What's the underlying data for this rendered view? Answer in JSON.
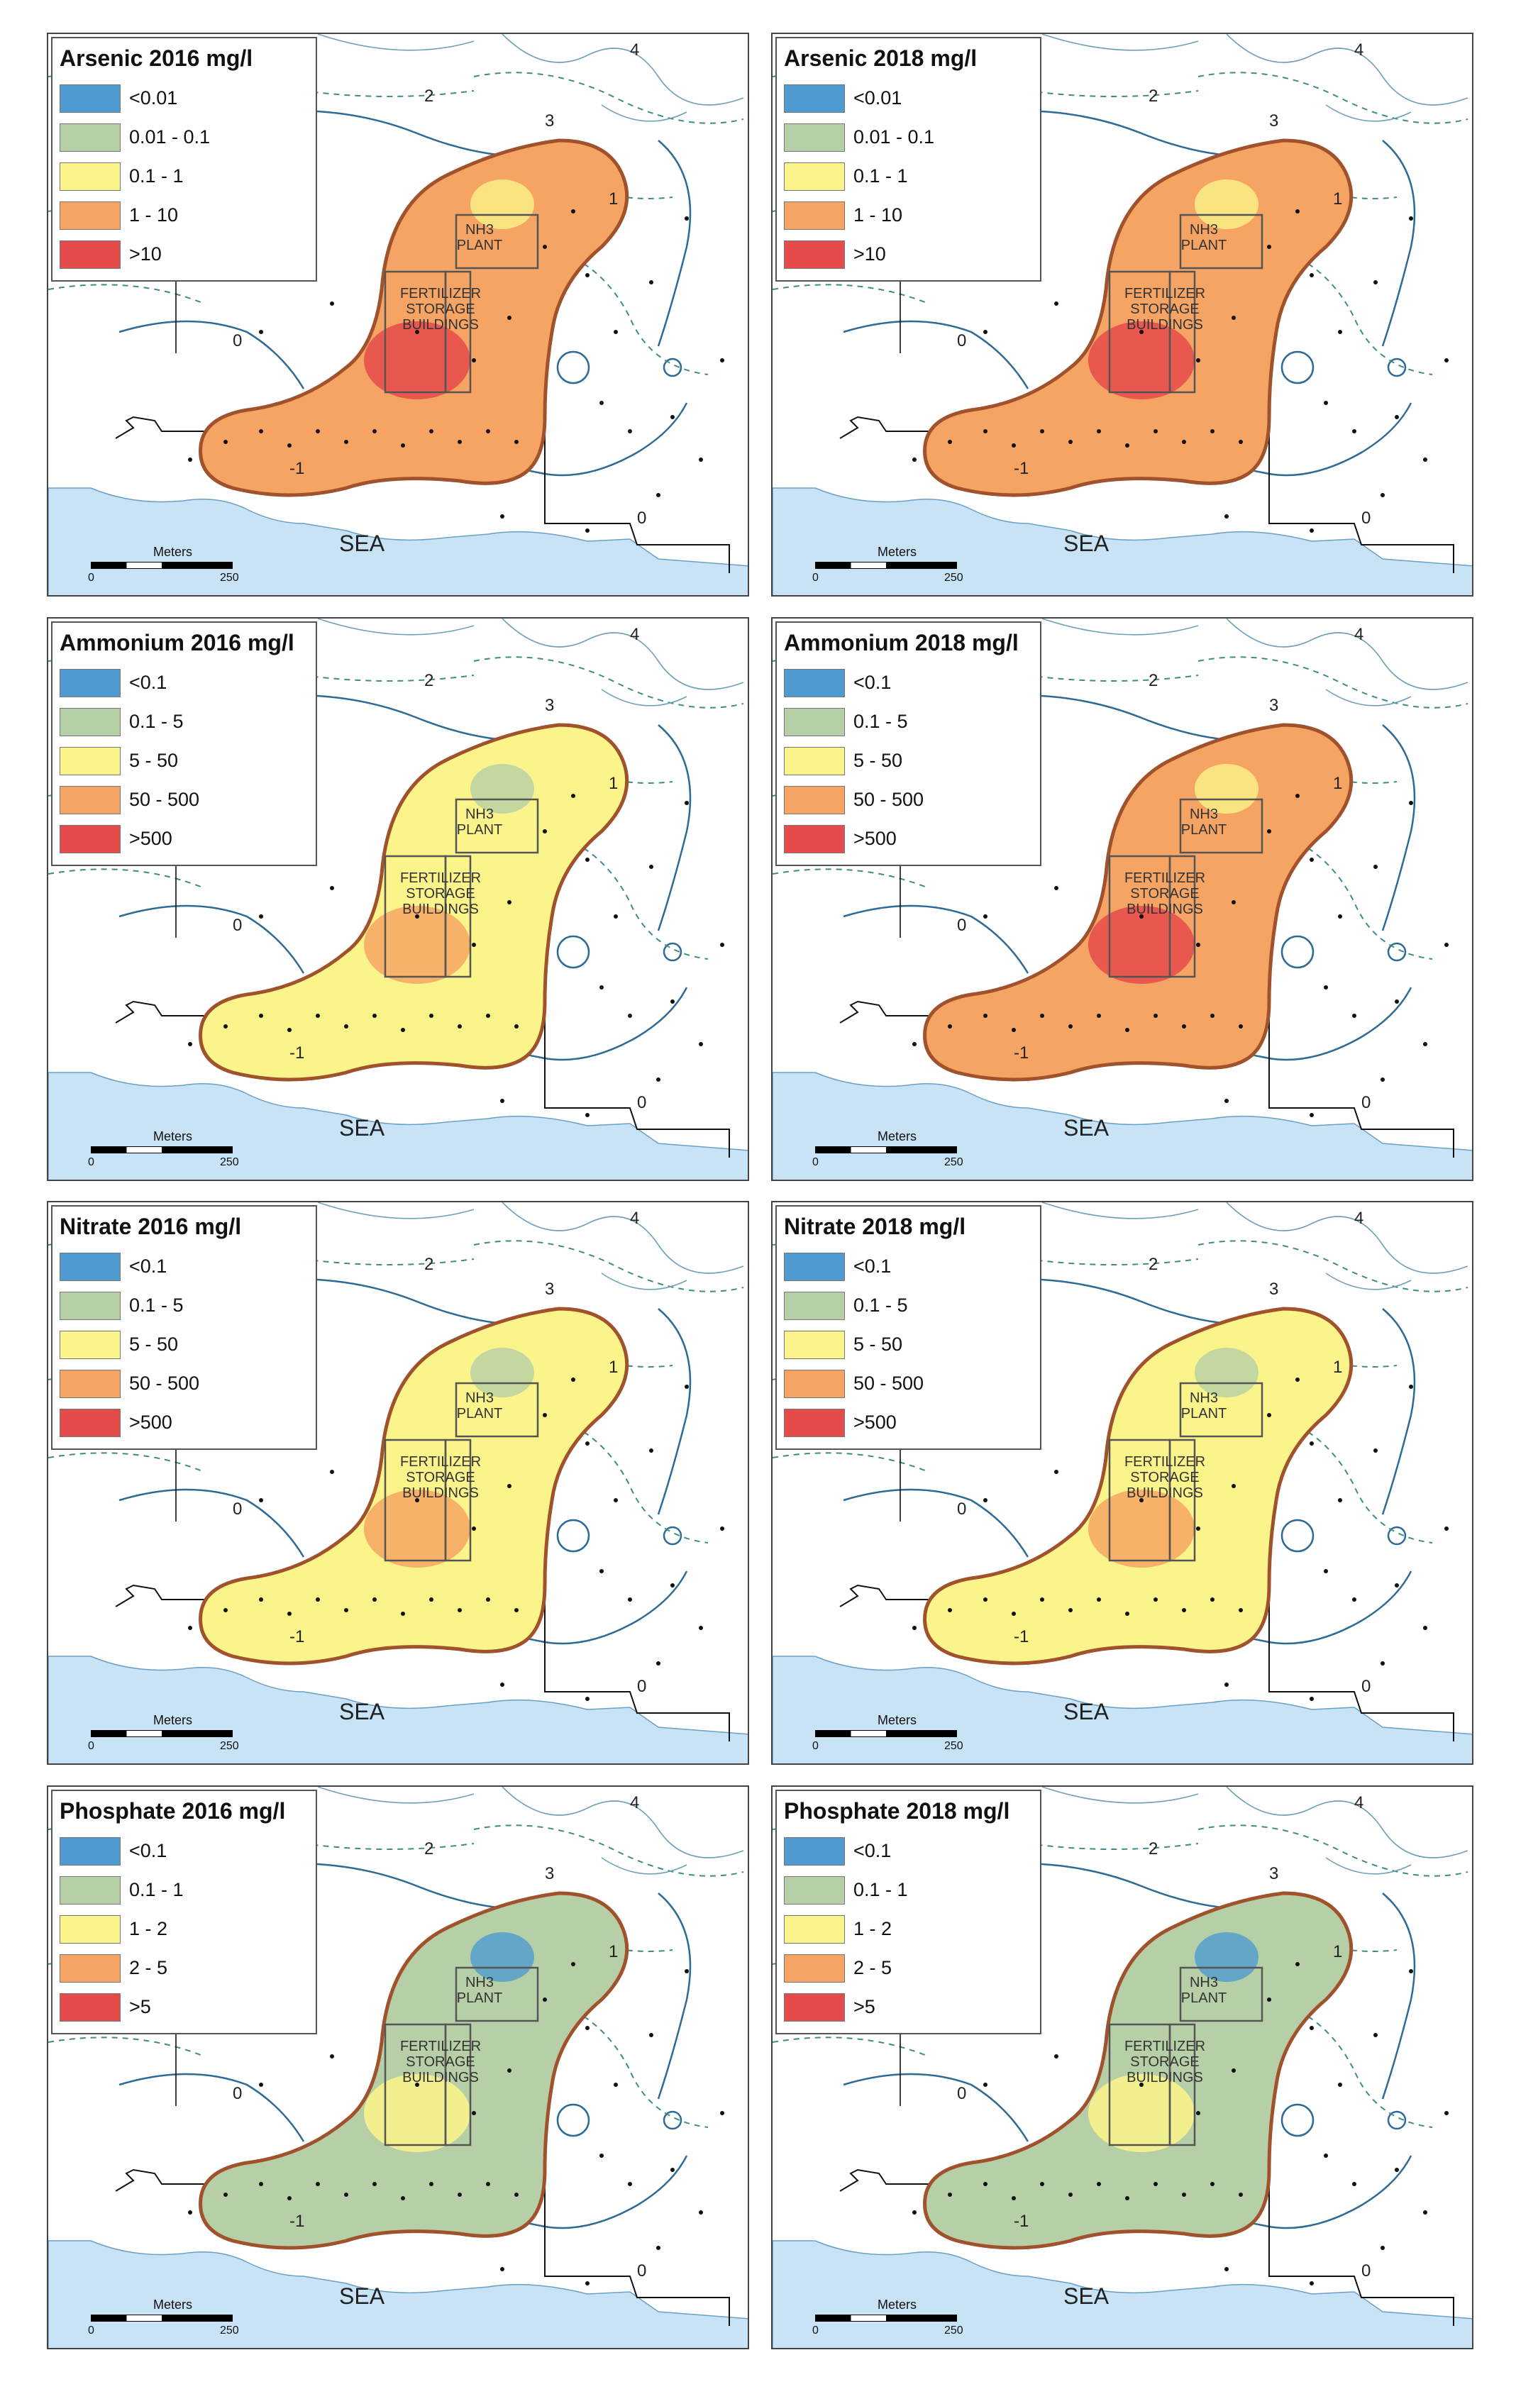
{
  "common": {
    "sea": "SEA",
    "scale_title": "Meters",
    "scale_zero": "0",
    "scale_max": "250",
    "nh3_line1": "NH3",
    "nh3_line2": "PLANT",
    "fert_line1": "FERTILIZER",
    "fert_line2": "STORAGE",
    "fert_line3": "BUILDINGS",
    "contour_labels": [
      "2",
      "3",
      "4",
      "0",
      "1",
      "-1"
    ]
  },
  "legend_colors": [
    "#4f9bd1",
    "#b7cfa6",
    "#fbf48a",
    "#f6a463",
    "#e64b4b"
  ],
  "panels": [
    {
      "title": "Arsenic 2016 mg/l",
      "classes": [
        "<0.01",
        "0.01 - 0.1",
        "0.1 - 1",
        "1 - 10",
        ">10"
      ],
      "dominant": 3
    },
    {
      "title": "Arsenic 2018 mg/l",
      "classes": [
        "<0.01",
        "0.01 - 0.1",
        "0.1 - 1",
        "1 - 10",
        ">10"
      ],
      "dominant": 3
    },
    {
      "title": "Ammonium 2016 mg/l",
      "classes": [
        "<0.1",
        "0.1 - 5",
        "5 - 50",
        "50 - 500",
        ">500"
      ],
      "dominant": 2
    },
    {
      "title": "Ammonium 2018 mg/l",
      "classes": [
        "<0.1",
        "0.1 - 5",
        "5 - 50",
        "50 - 500",
        ">500"
      ],
      "dominant": 3
    },
    {
      "title": "Nitrate 2016 mg/l",
      "classes": [
        "<0.1",
        "0.1 - 5",
        "5 - 50",
        "50 - 500",
        ">500"
      ],
      "dominant": 2
    },
    {
      "title": "Nitrate 2018 mg/l",
      "classes": [
        "<0.1",
        "0.1 - 5",
        "5 - 50",
        "50 - 500",
        ">500"
      ],
      "dominant": 2
    },
    {
      "title": "Phosphate 2016 mg/l",
      "classes": [
        "<0.1",
        "0.1 - 1",
        "1 - 2",
        "2 - 5",
        ">5"
      ],
      "dominant": 1
    },
    {
      "title": "Phosphate 2018 mg/l",
      "classes": [
        "<0.1",
        "0.1 - 1",
        "1 - 2",
        "2 - 5",
        ">5"
      ],
      "dominant": 1
    }
  ]
}
